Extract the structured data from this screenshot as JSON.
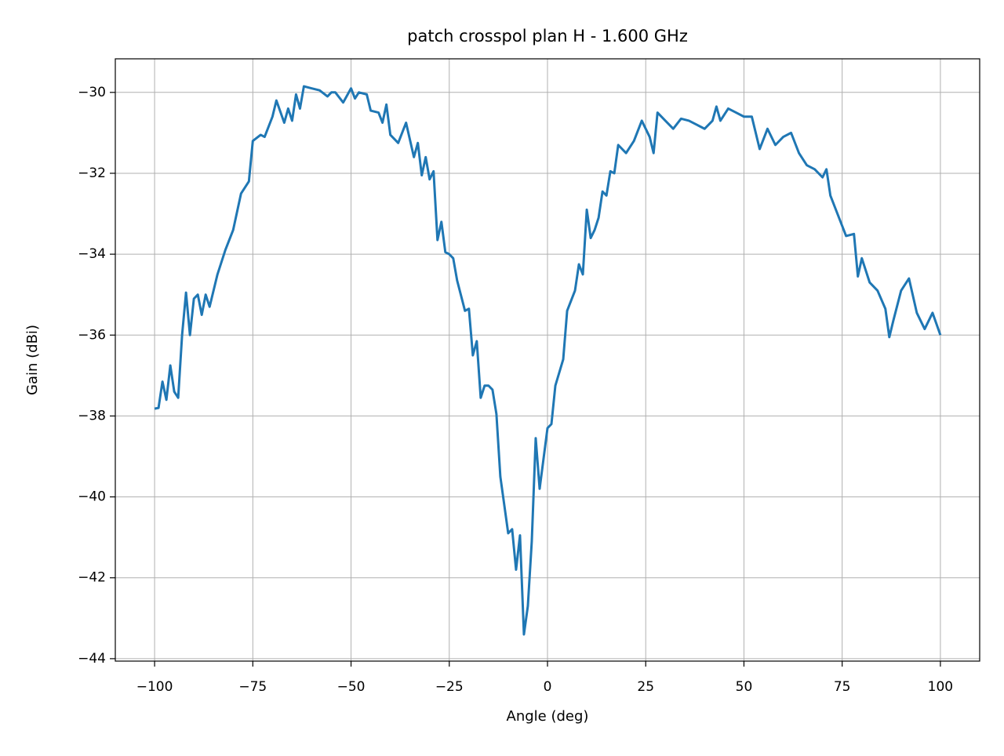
{
  "chart_data": {
    "type": "line",
    "title": "patch crosspol plan H - 1.600 GHz",
    "x_label": "Angle (deg)",
    "y_label": "Gain (dBi)",
    "x": [
      -100,
      -99,
      -98,
      -97,
      -96,
      -95,
      -94,
      -93,
      -92,
      -91,
      -90,
      -89,
      -88,
      -87,
      -86,
      -84,
      -82,
      -80,
      -78,
      -76,
      -75,
      -73,
      -72,
      -70,
      -69,
      -67,
      -66,
      -65,
      -64,
      -63,
      -62,
      -60,
      -58,
      -56,
      -55,
      -54,
      -52,
      -50,
      -49,
      -48,
      -46,
      -45,
      -43,
      -42,
      -41,
      -40,
      -38,
      -36,
      -34,
      -33,
      -32,
      -31,
      -30,
      -29,
      -28,
      -27,
      -26,
      -25,
      -24,
      -23,
      -21,
      -20,
      -19,
      -18,
      -17,
      -16,
      -15,
      -14,
      -13,
      -12,
      -10,
      -9,
      -8,
      -7,
      -6,
      -5,
      -4,
      -3,
      -2,
      0,
      1,
      2,
      4,
      5,
      7,
      8,
      9,
      10,
      11,
      12,
      13,
      14,
      15,
      16,
      17,
      18,
      20,
      22,
      24,
      26,
      27,
      28,
      30,
      32,
      34,
      36,
      38,
      40,
      42,
      43,
      44,
      46,
      48,
      50,
      52,
      54,
      56,
      58,
      60,
      62,
      64,
      66,
      68,
      70,
      71,
      72,
      74,
      76,
      78,
      79,
      80,
      82,
      84,
      86,
      87,
      88,
      90,
      92,
      94,
      96,
      98,
      100
    ],
    "series": [
      {
        "name": "Gain",
        "color": "#1f77b4",
        "values": [
          -37.82,
          -37.8,
          -37.15,
          -37.6,
          -36.75,
          -37.4,
          -37.55,
          -36.0,
          -34.95,
          -36.0,
          -35.1,
          -35.0,
          -35.5,
          -35.0,
          -35.3,
          -34.5,
          -33.9,
          -33.4,
          -32.5,
          -32.2,
          -31.2,
          -31.05,
          -31.1,
          -30.6,
          -30.2,
          -30.75,
          -30.4,
          -30.7,
          -30.05,
          -30.4,
          -29.85,
          -29.9,
          -29.95,
          -30.1,
          -30.0,
          -30.0,
          -30.25,
          -29.9,
          -30.15,
          -30.0,
          -30.05,
          -30.45,
          -30.5,
          -30.75,
          -30.3,
          -31.05,
          -31.25,
          -30.75,
          -31.6,
          -31.25,
          -32.05,
          -31.6,
          -32.15,
          -31.95,
          -33.65,
          -33.2,
          -33.95,
          -34.0,
          -34.1,
          -34.65,
          -35.4,
          -35.35,
          -36.5,
          -36.15,
          -37.55,
          -37.25,
          -37.25,
          -37.35,
          -37.95,
          -39.5,
          -40.9,
          -40.8,
          -41.8,
          -40.95,
          -43.4,
          -42.7,
          -41.1,
          -38.55,
          -39.8,
          -38.3,
          -38.2,
          -37.25,
          -36.6,
          -35.4,
          -34.9,
          -34.25,
          -34.5,
          -32.9,
          -33.6,
          -33.4,
          -33.1,
          -32.45,
          -32.55,
          -31.95,
          -32.0,
          -31.3,
          -31.5,
          -31.2,
          -30.7,
          -31.1,
          -31.5,
          -30.5,
          -30.7,
          -30.9,
          -30.65,
          -30.7,
          -30.8,
          -30.9,
          -30.7,
          -30.35,
          -30.7,
          -30.4,
          -30.5,
          -30.6,
          -30.6,
          -31.4,
          -30.9,
          -31.3,
          -31.1,
          -31.0,
          -31.5,
          -31.8,
          -31.9,
          -32.1,
          -31.9,
          -32.55,
          -33.05,
          -33.55,
          -33.5,
          -34.55,
          -34.1,
          -34.7,
          -34.9,
          -35.35,
          -36.05,
          -35.65,
          -34.9,
          -34.6,
          -35.45,
          -35.85,
          -35.45,
          -36.0
        ]
      }
    ],
    "xlim": [
      -110,
      110
    ],
    "ylim": [
      -44.06,
      -29.17
    ],
    "xticks": [
      {
        "value": -100,
        "label": "−100"
      },
      {
        "value": -75,
        "label": "−75"
      },
      {
        "value": -50,
        "label": "−50"
      },
      {
        "value": -25,
        "label": "−25"
      },
      0,
      25,
      50,
      75,
      100
    ],
    "yticks": [
      {
        "value": -44,
        "label": "−44"
      },
      {
        "value": -42,
        "label": "−42"
      },
      {
        "value": -40,
        "label": "−40"
      },
      {
        "value": -38,
        "label": "−38"
      },
      {
        "value": -36,
        "label": "−36"
      },
      {
        "value": -34,
        "label": "−34"
      },
      {
        "value": -32,
        "label": "−32"
      },
      {
        "value": -30,
        "label": "−30"
      }
    ],
    "grid": true
  }
}
